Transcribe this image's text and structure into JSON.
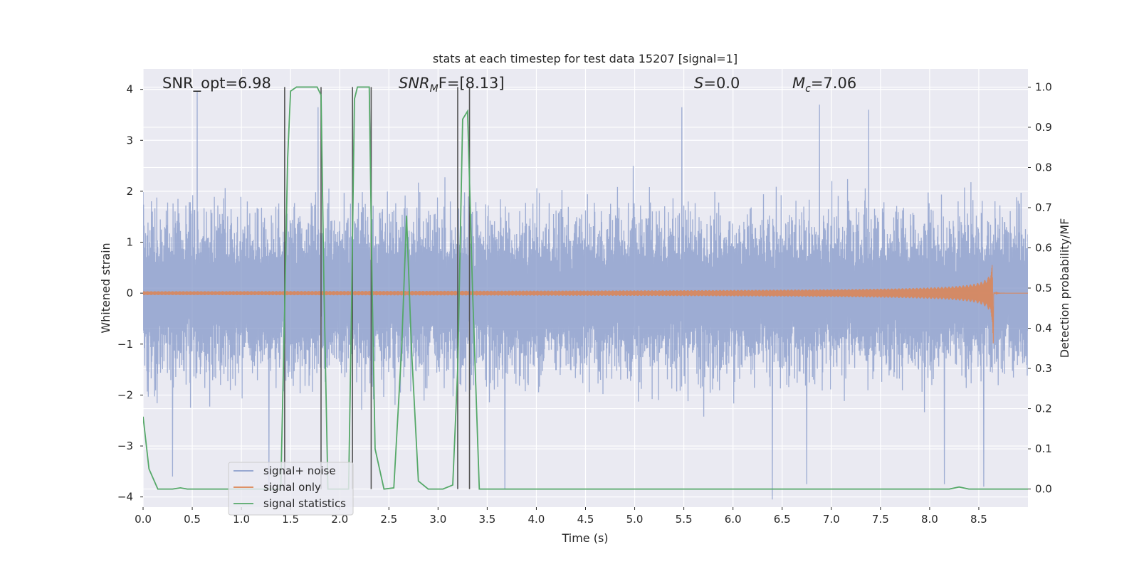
{
  "chart_data": {
    "type": "line",
    "title": "stats at each timestep for test data 15207 [signal=1]",
    "xlabel": "Time (s)",
    "ylabel": "Whitened strain",
    "y2label": "Detection probability/MF",
    "xlim": [
      0.0,
      9.0
    ],
    "ylim": [
      -4.2,
      4.4
    ],
    "y2lim": [
      -0.045,
      1.045
    ],
    "x_ticks": [
      0.0,
      0.5,
      1.0,
      1.5,
      2.0,
      2.5,
      3.0,
      3.5,
      4.0,
      4.5,
      5.0,
      5.5,
      6.0,
      6.5,
      7.0,
      7.5,
      8.0,
      8.5
    ],
    "x_tick_labels": [
      "0.0",
      "0.5",
      "1.0",
      "1.5",
      "2.0",
      "2.5",
      "3.0",
      "3.5",
      "4.0",
      "4.5",
      "5.0",
      "5.5",
      "6.0",
      "6.5",
      "7.0",
      "7.5",
      "8.0",
      "8.5"
    ],
    "y_ticks": [
      4,
      3,
      2,
      1,
      0,
      -1,
      -2,
      -3,
      -4
    ],
    "y_tick_labels": [
      "4",
      "3",
      "2",
      "1",
      "0",
      "−1",
      "−2",
      "−3",
      "−4"
    ],
    "y2_ticks": [
      1.0,
      0.9,
      0.8,
      0.7,
      0.6,
      0.5,
      0.4,
      0.3,
      0.2,
      0.1,
      0.0
    ],
    "y2_tick_labels": [
      "1.0",
      "0.9",
      "0.8",
      "0.7",
      "0.6",
      "0.5",
      "0.4",
      "0.3",
      "0.2",
      "0.1",
      "0.0"
    ],
    "grid": true,
    "legend_position": "bottom-left",
    "annotations": {
      "snr_opt": "SNR_opt=6.98",
      "snr_mf_main": "SNR",
      "snr_mf_sub": "M",
      "snr_mf_rest": "F=[8.13]",
      "s_main": "S",
      "s_rest": "=0.0",
      "mc_main": "M",
      "mc_sub": "c",
      "mc_rest": "=7.06"
    },
    "series": [
      {
        "name": "signal+ noise",
        "color": "#8c9fcc",
        "axis": "left",
        "kind": "noise",
        "x_range": [
          0.0,
          9.0
        ],
        "amplitude": 1.5,
        "peaks": [
          [
            0.55,
            3.95
          ],
          [
            1.78,
            3.65
          ],
          [
            2.32,
            3.35
          ],
          [
            5.48,
            3.65
          ],
          [
            6.88,
            3.7
          ],
          [
            7.38,
            3.6
          ],
          [
            8.55,
            3.4
          ],
          [
            0.3,
            -3.6
          ],
          [
            1.28,
            -3.8
          ],
          [
            3.68,
            -3.85
          ],
          [
            6.4,
            -4.05
          ],
          [
            6.75,
            -3.75
          ],
          [
            8.15,
            -3.75
          ],
          [
            8.55,
            -3.8
          ]
        ]
      },
      {
        "name": "signal only",
        "color": "#dd8452",
        "axis": "left",
        "kind": "chirp",
        "t_merger": 8.65,
        "peak_amplitude": 0.95,
        "end_low": -1.1
      },
      {
        "name": "signal statistics",
        "color": "#55a868",
        "axis": "right",
        "x": [
          0.0,
          0.06,
          0.15,
          0.3,
          0.38,
          0.45,
          1.4,
          1.44,
          1.47,
          1.5,
          1.56,
          1.77,
          1.81,
          1.84,
          1.88,
          2.0,
          2.09,
          2.12,
          2.15,
          2.18,
          2.3,
          2.33,
          2.36,
          2.45,
          2.55,
          2.63,
          2.68,
          2.73,
          2.8,
          2.9,
          3.05,
          3.15,
          3.2,
          3.25,
          3.3,
          3.35,
          3.42,
          3.48,
          4.0,
          8.2,
          8.3,
          8.4,
          9.0
        ],
        "y": [
          0.18,
          0.05,
          0.0,
          0.0,
          0.003,
          0.0,
          0.0,
          0.45,
          0.82,
          0.99,
          1.0,
          1.0,
          0.98,
          0.5,
          0.0,
          0.0,
          0.0,
          0.45,
          0.97,
          1.0,
          1.0,
          0.5,
          0.1,
          0.0,
          0.003,
          0.35,
          0.68,
          0.35,
          0.02,
          0.0,
          0.0,
          0.01,
          0.3,
          0.92,
          0.94,
          0.5,
          0.0,
          0.0,
          0.0,
          0.0,
          0.005,
          0.0,
          0.0
        ]
      }
    ],
    "vertical_lines": {
      "color": "#555555",
      "x": [
        1.44,
        1.81,
        2.13,
        2.32,
        3.2,
        3.32
      ],
      "y_range": [
        0.0,
        1.0
      ]
    }
  }
}
